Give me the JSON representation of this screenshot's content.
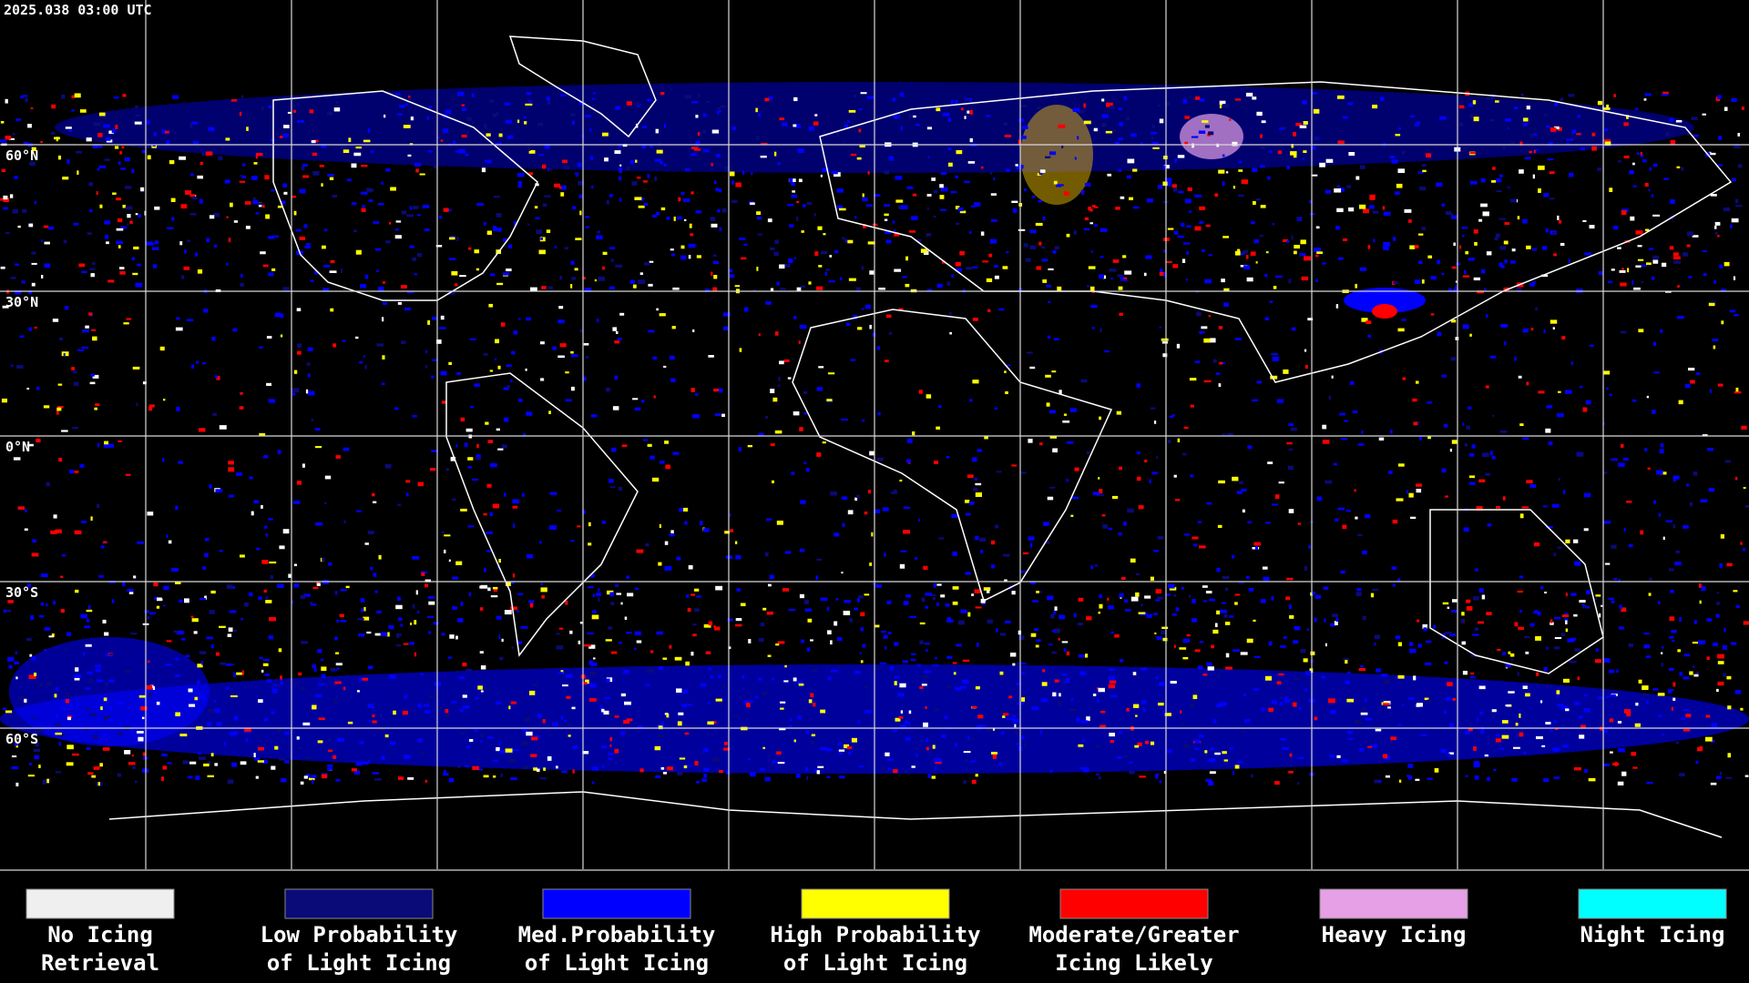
{
  "timestamp": "2025.038 03:00 UTC",
  "latitude_labels": [
    "60°N",
    "30°N",
    "0°N",
    "30°S",
    "60°S"
  ],
  "legend": [
    {
      "lines": [
        "No Icing",
        "Retrieval"
      ],
      "color": "#efefef"
    },
    {
      "lines": [
        "Low Probability",
        "of Light Icing"
      ],
      "color": "#0a0a78"
    },
    {
      "lines": [
        "Med.Probability",
        "of Light Icing"
      ],
      "color": "#0000ff"
    },
    {
      "lines": [
        "High Probability",
        "of Light Icing"
      ],
      "color": "#ffff00"
    },
    {
      "lines": [
        "Moderate/Greater",
        "Icing Likely"
      ],
      "color": "#ff0000"
    },
    {
      "lines": [
        "Heavy Icing"
      ],
      "color": "#e6a0e6"
    },
    {
      "lines": [
        "Night Icing"
      ],
      "color": "#00ffff"
    }
  ]
}
